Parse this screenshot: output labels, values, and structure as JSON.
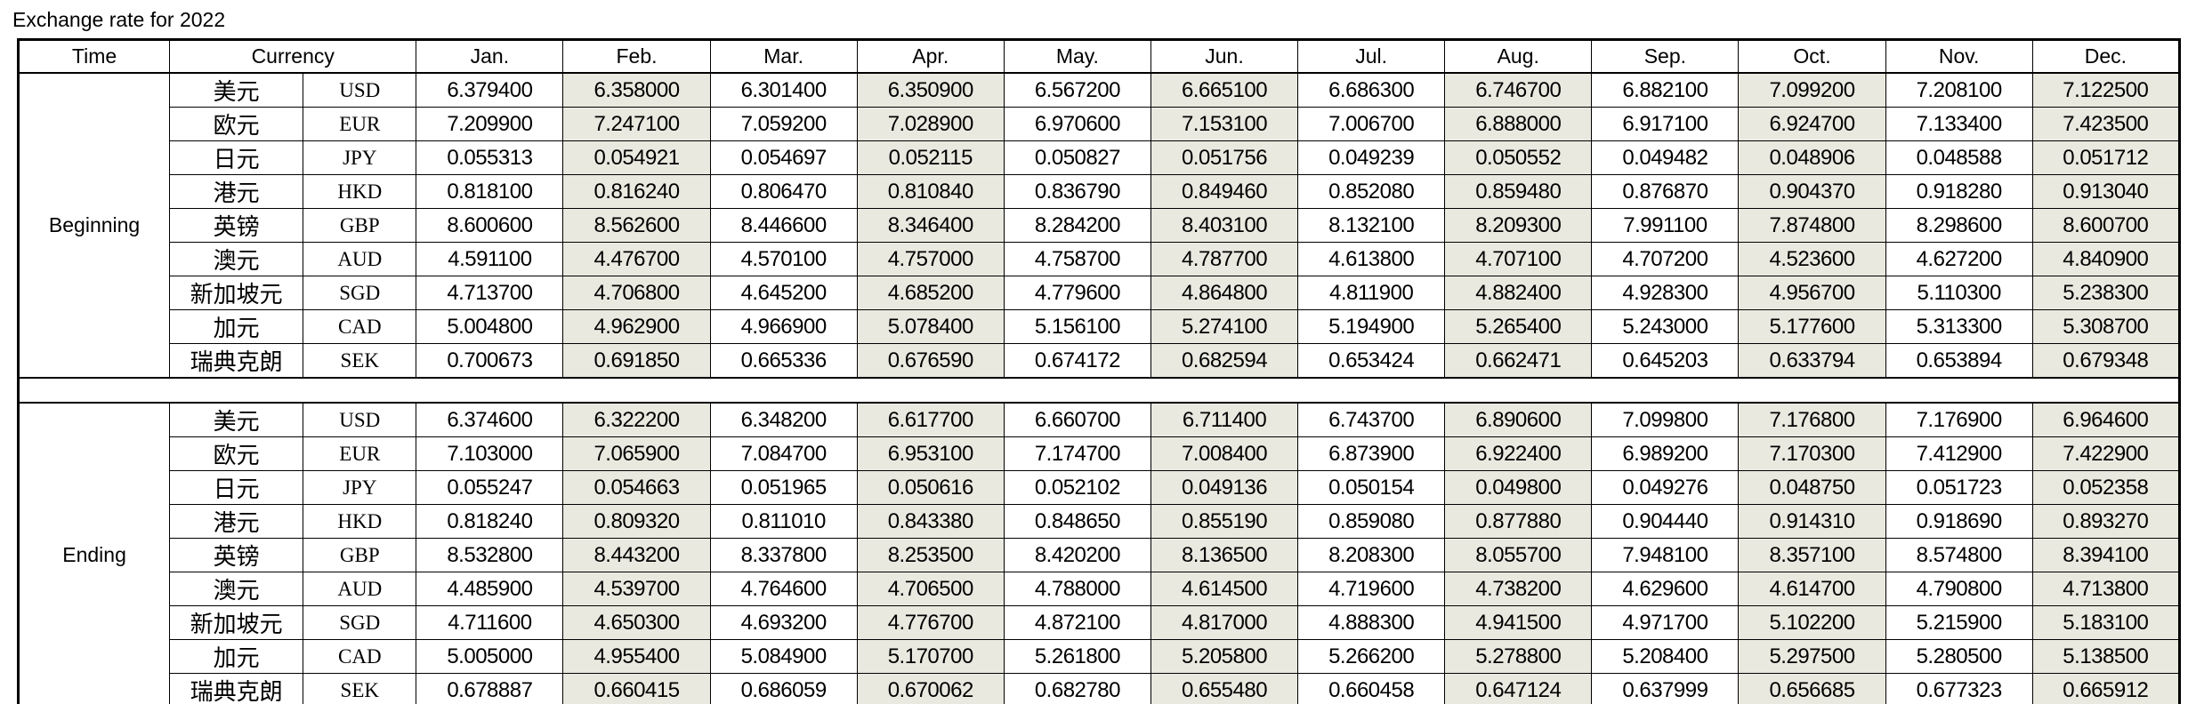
{
  "title": "Exchange rate for 2022",
  "colors": {
    "page_bg": "#ffffff",
    "grid_border": "#000000",
    "shaded_column_bg": "#e9e9e0",
    "text": "#000000"
  },
  "table": {
    "headers": {
      "time": "Time",
      "currency": "Currency",
      "months": [
        "Jan.",
        "Feb.",
        "Mar.",
        "Apr.",
        "May.",
        "Jun.",
        "Jul.",
        "Aug.",
        "Sep.",
        "Oct.",
        "Nov.",
        "Dec."
      ]
    },
    "shaded_months": [
      "Feb.",
      "Apr.",
      "Jun.",
      "Aug.",
      "Oct.",
      "Dec."
    ],
    "sections": [
      {
        "label": "Beginning",
        "rows": [
          {
            "name_cn": "美元",
            "code": "USD",
            "values": [
              "6.379400",
              "6.358000",
              "6.301400",
              "6.350900",
              "6.567200",
              "6.665100",
              "6.686300",
              "6.746700",
              "6.882100",
              "7.099200",
              "7.208100",
              "7.122500"
            ]
          },
          {
            "name_cn": "欧元",
            "code": "EUR",
            "values": [
              "7.209900",
              "7.247100",
              "7.059200",
              "7.028900",
              "6.970600",
              "7.153100",
              "7.006700",
              "6.888000",
              "6.917100",
              "6.924700",
              "7.133400",
              "7.423500"
            ]
          },
          {
            "name_cn": "日元",
            "code": "JPY",
            "values": [
              "0.055313",
              "0.054921",
              "0.054697",
              "0.052115",
              "0.050827",
              "0.051756",
              "0.049239",
              "0.050552",
              "0.049482",
              "0.048906",
              "0.048588",
              "0.051712"
            ]
          },
          {
            "name_cn": "港元",
            "code": "HKD",
            "values": [
              "0.818100",
              "0.816240",
              "0.806470",
              "0.810840",
              "0.836790",
              "0.849460",
              "0.852080",
              "0.859480",
              "0.876870",
              "0.904370",
              "0.918280",
              "0.913040"
            ]
          },
          {
            "name_cn": "英镑",
            "code": "GBP",
            "values": [
              "8.600600",
              "8.562600",
              "8.446600",
              "8.346400",
              "8.284200",
              "8.403100",
              "8.132100",
              "8.209300",
              "7.991100",
              "7.874800",
              "8.298600",
              "8.600700"
            ]
          },
          {
            "name_cn": "澳元",
            "code": "AUD",
            "values": [
              "4.591100",
              "4.476700",
              "4.570100",
              "4.757000",
              "4.758700",
              "4.787700",
              "4.613800",
              "4.707100",
              "4.707200",
              "4.523600",
              "4.627200",
              "4.840900"
            ]
          },
          {
            "name_cn": "新加坡元",
            "code": "SGD",
            "values": [
              "4.713700",
              "4.706800",
              "4.645200",
              "4.685200",
              "4.779600",
              "4.864800",
              "4.811900",
              "4.882400",
              "4.928300",
              "4.956700",
              "5.110300",
              "5.238300"
            ]
          },
          {
            "name_cn": "加元",
            "code": "CAD",
            "values": [
              "5.004800",
              "4.962900",
              "4.966900",
              "5.078400",
              "5.156100",
              "5.274100",
              "5.194900",
              "5.265400",
              "5.243000",
              "5.177600",
              "5.313300",
              "5.308700"
            ]
          },
          {
            "name_cn": "瑞典克朗",
            "code": "SEK",
            "values": [
              "0.700673",
              "0.691850",
              "0.665336",
              "0.676590",
              "0.674172",
              "0.682594",
              "0.653424",
              "0.662471",
              "0.645203",
              "0.633794",
              "0.653894",
              "0.679348"
            ]
          }
        ]
      },
      {
        "label": "Ending",
        "rows": [
          {
            "name_cn": "美元",
            "code": "USD",
            "values": [
              "6.374600",
              "6.322200",
              "6.348200",
              "6.617700",
              "6.660700",
              "6.711400",
              "6.743700",
              "6.890600",
              "7.099800",
              "7.176800",
              "7.176900",
              "6.964600"
            ]
          },
          {
            "name_cn": "欧元",
            "code": "EUR",
            "values": [
              "7.103000",
              "7.065900",
              "7.084700",
              "6.953100",
              "7.174700",
              "7.008400",
              "6.873900",
              "6.922400",
              "6.989200",
              "7.170300",
              "7.412900",
              "7.422900"
            ]
          },
          {
            "name_cn": "日元",
            "code": "JPY",
            "values": [
              "0.055247",
              "0.054663",
              "0.051965",
              "0.050616",
              "0.052102",
              "0.049136",
              "0.050154",
              "0.049800",
              "0.049276",
              "0.048750",
              "0.051723",
              "0.052358"
            ]
          },
          {
            "name_cn": "港元",
            "code": "HKD",
            "values": [
              "0.818240",
              "0.809320",
              "0.811010",
              "0.843380",
              "0.848650",
              "0.855190",
              "0.859080",
              "0.877880",
              "0.904440",
              "0.914310",
              "0.918690",
              "0.893270"
            ]
          },
          {
            "name_cn": "英镑",
            "code": "GBP",
            "values": [
              "8.532800",
              "8.443200",
              "8.337800",
              "8.253500",
              "8.420200",
              "8.136500",
              "8.208300",
              "8.055700",
              "7.948100",
              "8.357100",
              "8.574800",
              "8.394100"
            ]
          },
          {
            "name_cn": "澳元",
            "code": "AUD",
            "values": [
              "4.485900",
              "4.539700",
              "4.764600",
              "4.706500",
              "4.788000",
              "4.614500",
              "4.719600",
              "4.738200",
              "4.629600",
              "4.614700",
              "4.790800",
              "4.713800"
            ]
          },
          {
            "name_cn": "新加坡元",
            "code": "SGD",
            "values": [
              "4.711600",
              "4.650300",
              "4.693200",
              "4.776700",
              "4.872100",
              "4.817000",
              "4.888300",
              "4.941500",
              "4.971700",
              "5.102200",
              "5.215900",
              "5.183100"
            ]
          },
          {
            "name_cn": "加元",
            "code": "CAD",
            "values": [
              "5.005000",
              "4.955400",
              "5.084900",
              "5.170700",
              "5.261800",
              "5.205800",
              "5.266200",
              "5.278800",
              "5.208400",
              "5.297500",
              "5.280500",
              "5.138500"
            ]
          },
          {
            "name_cn": "瑞典克朗",
            "code": "SEK",
            "values": [
              "0.678887",
              "0.660415",
              "0.686059",
              "0.670062",
              "0.682780",
              "0.655480",
              "0.660458",
              "0.647124",
              "0.637999",
              "0.656685",
              "0.677323",
              "0.665912"
            ]
          }
        ]
      }
    ]
  }
}
